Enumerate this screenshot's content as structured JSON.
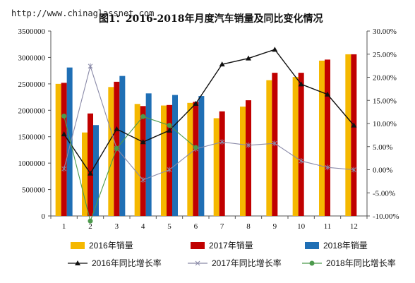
{
  "watermark": "http://www.chinaglassnet.com",
  "chart_data": {
    "type": "bar",
    "title": "图1：2016-2018年月度汽车销量及同比变化情况",
    "categories": [
      "1",
      "2",
      "3",
      "4",
      "5",
      "6",
      "7",
      "8",
      "9",
      "10",
      "11",
      "12"
    ],
    "y_left": {
      "min": 0,
      "max": 3500000,
      "ticks": [
        "0",
        "500000",
        "1000000",
        "1500000",
        "2000000",
        "2500000",
        "3000000",
        "3500000"
      ]
    },
    "y_right": {
      "min": -10,
      "max": 30,
      "ticks": [
        "-10.00%",
        "-5.00%",
        "0.00%",
        "5.00%",
        "10.00%",
        "15.00%",
        "20.00%",
        "25.00%",
        "30.00%"
      ]
    },
    "bar_series": [
      {
        "name": "2016年销量",
        "color": "#f5b800",
        "values": [
          2500000,
          1580000,
          2440000,
          2120000,
          2090000,
          2140000,
          1850000,
          2070000,
          2570000,
          2630000,
          2940000,
          3060000
        ]
      },
      {
        "name": "2017年销量",
        "color": "#c00000",
        "values": [
          2520000,
          1940000,
          2540000,
          2080000,
          2100000,
          2160000,
          1980000,
          2190000,
          2710000,
          2710000,
          2960000,
          3060000
        ]
      },
      {
        "name": "2018年销量",
        "color": "#1f6fb5",
        "values": [
          2810000,
          1720000,
          2650000,
          2320000,
          2290000,
          2270000,
          null,
          null,
          null,
          null,
          null,
          null
        ]
      }
    ],
    "line_series": [
      {
        "name": "2016年同比增长率",
        "color": "#111111",
        "marker": "triangle",
        "values": [
          7.7,
          -0.8,
          8.8,
          6.0,
          8.5,
          14.3,
          22.8,
          24.1,
          26.0,
          18.5,
          16.3,
          9.6
        ]
      },
      {
        "name": "2017年同比增长率",
        "color": "#8a8aa8",
        "marker": "star",
        "values": [
          0.2,
          22.4,
          4.6,
          -2.2,
          0.0,
          4.5,
          6.0,
          5.3,
          5.7,
          1.9,
          0.5,
          0.0
        ]
      },
      {
        "name": "2018年同比增长率",
        "color": "#4c9a4c",
        "marker": "circle",
        "values": [
          11.6,
          -11.1,
          4.6,
          11.5,
          9.6,
          4.8,
          null,
          null,
          null,
          null,
          null,
          null
        ]
      }
    ],
    "legend_position": "bottom"
  }
}
